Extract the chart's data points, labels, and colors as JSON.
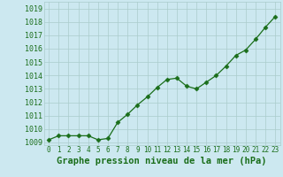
{
  "x": [
    0,
    1,
    2,
    3,
    4,
    5,
    6,
    7,
    8,
    9,
    10,
    11,
    12,
    13,
    14,
    15,
    16,
    17,
    18,
    19,
    20,
    21,
    22,
    23
  ],
  "y": [
    1009.2,
    1009.5,
    1009.5,
    1009.5,
    1009.5,
    1009.2,
    1009.3,
    1010.5,
    1011.1,
    1011.8,
    1012.4,
    1013.1,
    1013.7,
    1013.8,
    1013.2,
    1013.0,
    1013.5,
    1014.0,
    1014.7,
    1015.5,
    1015.9,
    1016.7,
    1017.6,
    1018.4
  ],
  "line_color": "#1a6e1a",
  "marker": "D",
  "marker_size": 2.5,
  "bg_color": "#cce8f0",
  "grid_color": "#aacccc",
  "xlabel": "Graphe pression niveau de la mer (hPa)",
  "xlabel_fontsize": 7.5,
  "ytick_fontsize": 6,
  "xtick_fontsize": 5.5,
  "ylim": [
    1008.8,
    1019.5
  ],
  "xlim": [
    -0.5,
    23.5
  ],
  "yticks": [
    1009,
    1010,
    1011,
    1012,
    1013,
    1014,
    1015,
    1016,
    1017,
    1018,
    1019
  ],
  "xticks": [
    0,
    1,
    2,
    3,
    4,
    5,
    6,
    7,
    8,
    9,
    10,
    11,
    12,
    13,
    14,
    15,
    16,
    17,
    18,
    19,
    20,
    21,
    22,
    23
  ]
}
